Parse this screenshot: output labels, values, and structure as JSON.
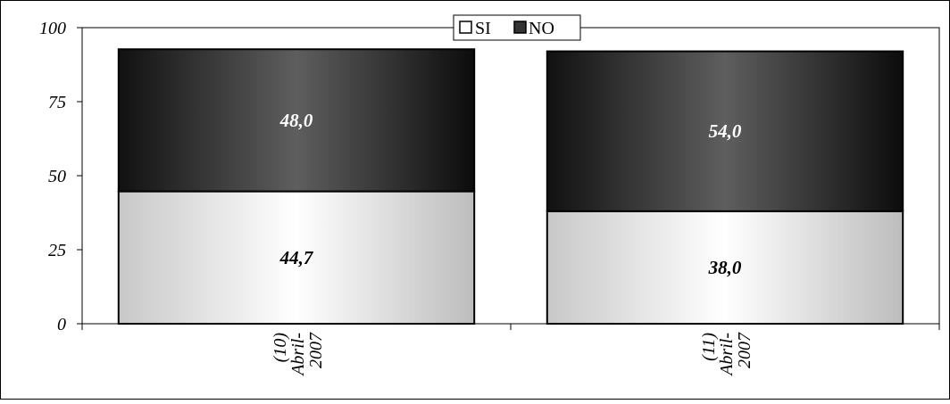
{
  "chart_data": {
    "type": "bar",
    "stacked": true,
    "categories": [
      "(10)\nAbril-\n2007",
      "(11)\nAbril-\n2007"
    ],
    "series": [
      {
        "name": "SI",
        "values": [
          44.7,
          38.0
        ],
        "labels": [
          "44,7",
          "38,0"
        ]
      },
      {
        "name": "NO",
        "values": [
          48.0,
          54.0
        ],
        "labels": [
          "48,0",
          "54,0"
        ]
      }
    ],
    "y_ticks": [
      "0",
      "25",
      "50",
      "75",
      "100"
    ],
    "ylim": [
      0,
      100
    ],
    "grid": false,
    "legend_position": "top-center",
    "colors": {
      "SI": "#cccccc",
      "NO": "#2a2a2a"
    }
  }
}
